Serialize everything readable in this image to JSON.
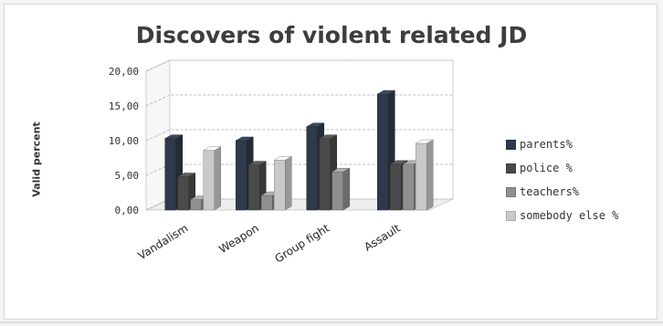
{
  "chart_data": {
    "type": "bar",
    "title": "Discovers of violent related JD",
    "ylabel": "Valid percent",
    "xlabel": "",
    "ylim": [
      0,
      20
    ],
    "yticks": [
      "0,00",
      "5,00",
      "10,00",
      "15,00",
      "20,00"
    ],
    "categories": [
      "Vandalism",
      "Weapon",
      "Group fight",
      "Assault"
    ],
    "series": [
      {
        "name": "parents%",
        "values": [
          10.3,
          10.0,
          12.0,
          16.7
        ],
        "color": "#2e3a4a"
      },
      {
        "name": "police %",
        "values": [
          4.8,
          6.5,
          10.3,
          6.6
        ],
        "color": "#4a4a4a"
      },
      {
        "name": "teachers%",
        "values": [
          1.5,
          2.1,
          5.5,
          6.6
        ],
        "color": "#8f8f8f"
      },
      {
        "name": "somebody else %",
        "values": [
          8.6,
          7.2,
          0,
          9.6
        ],
        "color": "#c9c9c9"
      }
    ],
    "legend_position": "right",
    "grid": true
  }
}
